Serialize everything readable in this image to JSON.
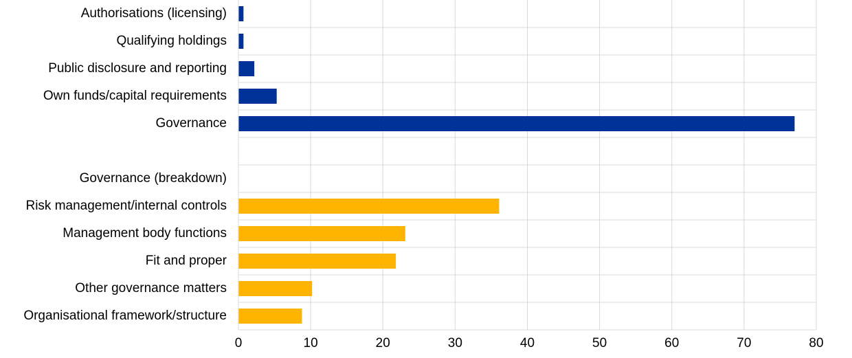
{
  "chart_data": {
    "type": "barh",
    "categories": [
      "Authorisations (licensing)",
      "Qualifying holdings",
      "Public disclosure and reporting",
      "Own funds/capital requirements",
      "Governance",
      null,
      "Governance (breakdown)",
      "Risk management/internal controls",
      "Management body functions",
      "Fit and proper",
      "Other governance matters",
      "Organisational framework/structure"
    ],
    "values": [
      0.7,
      0.7,
      2.2,
      5.3,
      77,
      null,
      null,
      36.1,
      23.1,
      21.8,
      10.2,
      8.8
    ],
    "colors": [
      "#003299",
      "#003299",
      "#003299",
      "#003299",
      "#003299",
      null,
      null,
      "#ffb400",
      "#ffb400",
      "#ffb400",
      "#ffb400",
      "#ffb400"
    ],
    "xlim": [
      0,
      80
    ],
    "xticks": [
      0,
      10,
      20,
      30,
      40,
      50,
      60,
      70,
      80
    ],
    "grid": true
  }
}
